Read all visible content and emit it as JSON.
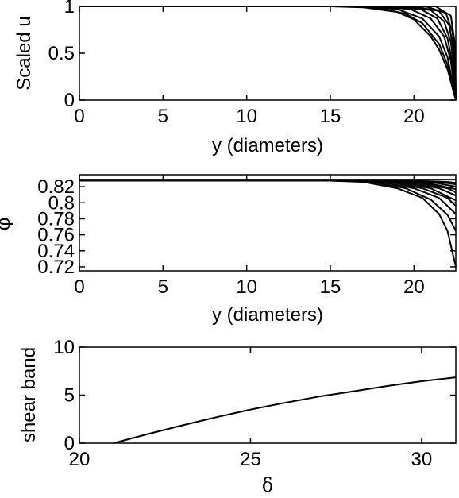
{
  "chart_data": [
    {
      "type": "line",
      "xlabel": "y (diameters)",
      "ylabel": "Scaled u",
      "xlim": [
        0,
        22.5
      ],
      "ylim": [
        0,
        1
      ],
      "xticks": [
        0,
        5,
        10,
        15,
        20
      ],
      "yticks": [
        0,
        0.5,
        1
      ],
      "xtick_labels": [
        "0",
        "5",
        "10",
        "15",
        "20"
      ],
      "ytick_labels": [
        "0",
        "0.5",
        "1"
      ],
      "grid": false,
      "series": [
        {
          "x": [
            0,
            15,
            17,
            19,
            20,
            21,
            21.5,
            22,
            22.5
          ],
          "y": [
            1,
            1,
            0.99,
            0.94,
            0.86,
            0.68,
            0.54,
            0.33,
            0
          ]
        },
        {
          "x": [
            0,
            16,
            18,
            19.5,
            20.5,
            21.5,
            22,
            22.5
          ],
          "y": [
            1,
            1,
            0.98,
            0.92,
            0.82,
            0.6,
            0.38,
            0
          ]
        },
        {
          "x": [
            0,
            17,
            19,
            20.5,
            21.5,
            22,
            22.5
          ],
          "y": [
            1,
            1,
            0.97,
            0.87,
            0.68,
            0.46,
            0
          ]
        },
        {
          "x": [
            0,
            17.8,
            19.8,
            21,
            21.8,
            22.2,
            22.5
          ],
          "y": [
            1,
            1,
            0.97,
            0.87,
            0.68,
            0.42,
            0
          ]
        },
        {
          "x": [
            0,
            18.6,
            20.4,
            21.4,
            22,
            22.3,
            22.5
          ],
          "y": [
            1,
            1,
            0.97,
            0.87,
            0.66,
            0.4,
            0
          ]
        },
        {
          "x": [
            0,
            19.3,
            21,
            21.8,
            22.2,
            22.4,
            22.5
          ],
          "y": [
            1,
            1,
            0.96,
            0.84,
            0.62,
            0.36,
            0
          ]
        },
        {
          "x": [
            0,
            20,
            21.5,
            22.1,
            22.35,
            22.5
          ],
          "y": [
            1,
            1,
            0.95,
            0.8,
            0.55,
            0
          ]
        },
        {
          "x": [
            0,
            20.7,
            21.9,
            22.3,
            22.45,
            22.5
          ],
          "y": [
            1,
            1,
            0.93,
            0.73,
            0.45,
            0
          ]
        },
        {
          "x": [
            0,
            21.3,
            22.2,
            22.45,
            22.5
          ],
          "y": [
            1,
            1,
            0.9,
            0.6,
            0
          ]
        }
      ]
    },
    {
      "type": "line",
      "xlabel": "y (diameters)",
      "ylabel": "φ",
      "xlim": [
        0,
        22.5
      ],
      "ylim": [
        0.715,
        0.835
      ],
      "xticks": [
        0,
        5,
        10,
        15,
        20
      ],
      "yticks": [
        0.72,
        0.74,
        0.76,
        0.78,
        0.8,
        0.82
      ],
      "xtick_labels": [
        "0",
        "5",
        "10",
        "15",
        "20"
      ],
      "ytick_labels": [
        "0.72",
        "0.74",
        "0.76",
        "0.78",
        "0.8",
        "0.82"
      ],
      "grid": false,
      "series": [
        {
          "x": [
            0,
            14.5,
            17,
            19,
            20.5,
            21.5,
            22,
            22.5
          ],
          "y": [
            0.828,
            0.828,
            0.826,
            0.818,
            0.806,
            0.786,
            0.765,
            0.72
          ]
        },
        {
          "x": [
            0,
            15,
            17.5,
            19.5,
            21,
            22,
            22.5
          ],
          "y": [
            0.828,
            0.828,
            0.826,
            0.818,
            0.804,
            0.785,
            0.765
          ]
        },
        {
          "x": [
            0,
            15.5,
            18,
            20,
            21.5,
            22.5
          ],
          "y": [
            0.828,
            0.828,
            0.826,
            0.818,
            0.806,
            0.786
          ]
        },
        {
          "x": [
            0,
            16,
            18.5,
            20.5,
            22,
            22.5
          ],
          "y": [
            0.828,
            0.828,
            0.826,
            0.818,
            0.806,
            0.796
          ]
        },
        {
          "x": [
            0,
            16.5,
            19,
            21,
            22.5
          ],
          "y": [
            0.828,
            0.828,
            0.826,
            0.818,
            0.803
          ]
        },
        {
          "x": [
            0,
            17,
            19.5,
            21.5,
            22.5
          ],
          "y": [
            0.828,
            0.828,
            0.826,
            0.818,
            0.809
          ]
        },
        {
          "x": [
            0,
            17.5,
            20,
            22,
            22.5
          ],
          "y": [
            0.828,
            0.828,
            0.826,
            0.818,
            0.813
          ]
        },
        {
          "x": [
            0,
            18,
            20.5,
            22.5
          ],
          "y": [
            0.828,
            0.828,
            0.826,
            0.817
          ]
        },
        {
          "x": [
            0,
            18.5,
            21,
            22.5
          ],
          "y": [
            0.828,
            0.828,
            0.826,
            0.82
          ]
        },
        {
          "x": [
            0,
            19,
            21.5,
            22.5
          ],
          "y": [
            0.828,
            0.828,
            0.826,
            0.823
          ]
        },
        {
          "x": [
            0,
            19.5,
            22,
            22.5
          ],
          "y": [
            0.828,
            0.828,
            0.826,
            0.825
          ]
        },
        {
          "x": [
            0,
            22.5
          ],
          "y": [
            0.829,
            0.829
          ]
        }
      ]
    },
    {
      "type": "line",
      "xlabel": "δ",
      "ylabel": "shear band",
      "xlim": [
        20,
        31
      ],
      "ylim": [
        0,
        10
      ],
      "xticks": [
        20,
        25,
        30
      ],
      "yticks": [
        0,
        5,
        10
      ],
      "xtick_labels": [
        "20",
        "25",
        "30"
      ],
      "ytick_labels": [
        "0",
        "5",
        "10"
      ],
      "grid": false,
      "series": [
        {
          "x": [
            21,
            22,
            23,
            24,
            25,
            26,
            27,
            28,
            29,
            30,
            31
          ],
          "y": [
            0,
            0.95,
            1.85,
            2.7,
            3.5,
            4.2,
            4.85,
            5.4,
            5.95,
            6.45,
            6.85
          ]
        }
      ]
    }
  ]
}
